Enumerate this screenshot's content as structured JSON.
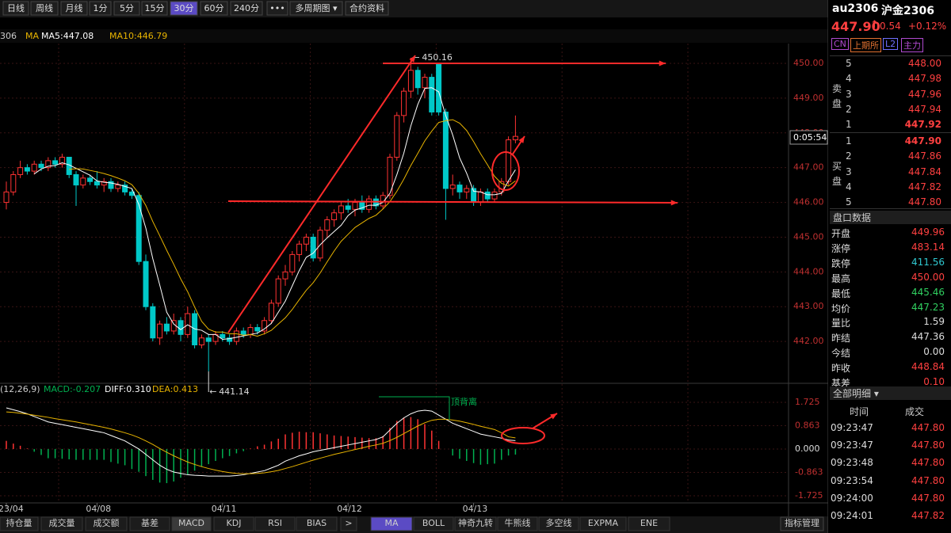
{
  "toolbar": {
    "buttons": [
      "日线",
      "周线",
      "月线",
      "1分",
      "5分",
      "15分",
      "30分",
      "60分",
      "240分",
      "•••",
      "多周期图 ▾",
      "合约资料"
    ]
  },
  "legend": {
    "code": "306",
    "ma": "MA",
    "ma5": "MA5:447.08",
    "ma10": "MA10:446.79"
  },
  "chart_data": {
    "type": "candlestick",
    "candles": [
      [
        446.0,
        446.6,
        445.8,
        446.3
      ],
      [
        446.3,
        446.9,
        446.2,
        446.8
      ],
      [
        446.8,
        447.2,
        446.7,
        447.0
      ],
      [
        447.0,
        447.1,
        446.8,
        446.9
      ],
      [
        446.9,
        447.2,
        446.8,
        447.1
      ],
      [
        447.1,
        447.2,
        446.9,
        447.0
      ],
      [
        447.0,
        447.3,
        446.9,
        447.2
      ],
      [
        447.2,
        447.3,
        447.0,
        447.1
      ],
      [
        447.1,
        447.4,
        447.0,
        447.3
      ],
      [
        447.3,
        447.3,
        446.7,
        446.8
      ],
      [
        446.8,
        446.9,
        445.9,
        446.5
      ],
      [
        446.5,
        446.8,
        446.4,
        446.7
      ],
      [
        446.7,
        446.8,
        446.5,
        446.6
      ],
      [
        446.6,
        446.9,
        446.4,
        446.5
      ],
      [
        446.5,
        446.7,
        446.3,
        446.6
      ],
      [
        446.6,
        446.7,
        446.3,
        446.4
      ],
      [
        446.4,
        446.6,
        446.3,
        446.5
      ],
      [
        446.5,
        446.6,
        446.2,
        446.3
      ],
      [
        446.3,
        446.4,
        446.1,
        446.2
      ],
      [
        446.2,
        446.3,
        444.2,
        444.3
      ],
      [
        444.3,
        444.5,
        442.9,
        443.0
      ],
      [
        443.0,
        443.1,
        442.0,
        442.1
      ],
      [
        442.1,
        442.6,
        441.9,
        442.5
      ],
      [
        442.5,
        442.7,
        442.2,
        442.3
      ],
      [
        442.3,
        442.8,
        442.2,
        442.6
      ],
      [
        442.6,
        442.7,
        442.0,
        442.2
      ],
      [
        442.2,
        443.0,
        442.1,
        442.8
      ],
      [
        442.8,
        442.9,
        441.8,
        441.9
      ],
      [
        441.9,
        442.2,
        441.8,
        442.1
      ],
      [
        442.1,
        442.2,
        441.14,
        442.0
      ],
      [
        442.0,
        442.3,
        441.9,
        442.2
      ],
      [
        442.2,
        442.3,
        442.0,
        442.1
      ],
      [
        442.1,
        442.2,
        441.9,
        442.0
      ],
      [
        442.0,
        442.4,
        441.9,
        442.3
      ],
      [
        442.3,
        442.4,
        442.1,
        442.2
      ],
      [
        442.2,
        442.5,
        442.1,
        442.4
      ],
      [
        442.4,
        442.5,
        442.2,
        442.3
      ],
      [
        442.3,
        442.7,
        442.2,
        442.6
      ],
      [
        442.6,
        443.2,
        442.5,
        443.1
      ],
      [
        443.1,
        443.9,
        443.0,
        443.8
      ],
      [
        443.8,
        444.2,
        443.6,
        444.0
      ],
      [
        444.0,
        444.6,
        443.9,
        444.5
      ],
      [
        444.5,
        444.9,
        444.3,
        444.8
      ],
      [
        444.8,
        445.1,
        444.6,
        445.0
      ],
      [
        445.0,
        445.1,
        444.3,
        444.4
      ],
      [
        444.4,
        445.3,
        444.3,
        445.2
      ],
      [
        445.2,
        445.6,
        445.0,
        445.5
      ],
      [
        445.5,
        445.8,
        445.3,
        445.7
      ],
      [
        445.7,
        446.0,
        445.5,
        445.9
      ],
      [
        445.9,
        446.1,
        445.7,
        445.8
      ],
      [
        445.8,
        446.1,
        445.6,
        446.0
      ],
      [
        446.0,
        446.2,
        445.7,
        445.8
      ],
      [
        445.8,
        446.2,
        445.7,
        446.1
      ],
      [
        446.1,
        446.2,
        445.8,
        445.9
      ],
      [
        445.9,
        446.3,
        445.8,
        446.2
      ],
      [
        446.2,
        447.4,
        446.1,
        447.3
      ],
      [
        447.3,
        448.6,
        447.2,
        448.5
      ],
      [
        448.5,
        449.3,
        448.3,
        449.2
      ],
      [
        449.2,
        450.16,
        449.0,
        449.8
      ],
      [
        449.8,
        449.9,
        449.1,
        449.3
      ],
      [
        449.3,
        449.7,
        449.0,
        449.6
      ],
      [
        449.6,
        449.7,
        448.5,
        448.6
      ],
      [
        450.0,
        450.0,
        448.5,
        448.6
      ],
      [
        448.6,
        448.7,
        445.5,
        446.4
      ],
      [
        446.4,
        446.8,
        446.2,
        446.5
      ],
      [
        446.5,
        446.6,
        446.1,
        446.3
      ],
      [
        446.3,
        446.5,
        446.1,
        446.4
      ],
      [
        446.4,
        446.5,
        445.9,
        446.0
      ],
      [
        446.0,
        446.4,
        445.9,
        446.3
      ],
      [
        446.3,
        446.4,
        446.0,
        446.1
      ],
      [
        446.1,
        446.4,
        446.0,
        446.3
      ],
      [
        446.3,
        446.7,
        446.2,
        446.6
      ],
      [
        446.6,
        447.9,
        446.5,
        447.8
      ],
      [
        447.8,
        448.5,
        447.7,
        447.9
      ]
    ],
    "categories": [
      "23/04",
      null,
      null,
      null,
      null,
      null,
      null,
      null,
      null,
      null,
      null,
      null,
      null,
      "04/08",
      null,
      null,
      null,
      null,
      null,
      null,
      null,
      null,
      null,
      null,
      null,
      null,
      null,
      null,
      null,
      null,
      null,
      "04/11",
      null,
      null,
      null,
      null,
      null,
      null,
      null,
      null,
      null,
      null,
      null,
      null,
      null,
      null,
      null,
      null,
      null,
      "04/12",
      null,
      null,
      null,
      null,
      null,
      null,
      null,
      null,
      null,
      null,
      null,
      null,
      null,
      null,
      null,
      null,
      null,
      "04/13",
      null,
      null,
      null,
      null,
      null,
      null
    ],
    "up_color": "#ff3232",
    "down_color": "#00c8c8",
    "ma": [
      {
        "period": 5,
        "color": "#ffffff"
      },
      {
        "period": 10,
        "color": "#e8b400"
      }
    ],
    "ylim": [
      441.0,
      450.57
    ],
    "yticks": [
      {
        "value": 442,
        "label": "442.00"
      },
      {
        "value": 443,
        "label": "443.00"
      },
      {
        "value": 444,
        "label": "444.00"
      },
      {
        "value": 445,
        "label": "445.00"
      },
      {
        "value": 446,
        "label": "446.00"
      },
      {
        "value": 447,
        "label": "447.00"
      },
      {
        "value": 448,
        "label": "448.00"
      },
      {
        "value": 449,
        "label": "449.00"
      },
      {
        "value": 450,
        "label": "450.00"
      }
    ],
    "countdown": "0:05:54"
  },
  "macd": {
    "params": "(12,26,9)",
    "macd_label": "MACD:-0.207",
    "diff_label": "DIFF:0.310",
    "dea_label": "DEA:0.413",
    "note": "顶背离",
    "diff": [
      1.52,
      1.45,
      1.38,
      1.3,
      1.2,
      1.1,
      1.0,
      0.95,
      0.9,
      0.85,
      0.8,
      0.75,
      0.7,
      0.65,
      0.6,
      0.5,
      0.4,
      0.3,
      0.15,
      0,
      -0.2,
      -0.4,
      -0.6,
      -0.75,
      -0.85,
      -0.9,
      -0.95,
      -0.97,
      -0.98,
      -1.0,
      -1.0,
      -1.0,
      -1.0,
      -0.98,
      -0.95,
      -0.9,
      -0.85,
      -0.8,
      -0.7,
      -0.6,
      -0.45,
      -0.35,
      -0.25,
      -0.18,
      -0.1,
      -0.05,
      0,
      0.05,
      0.1,
      0.15,
      0.2,
      0.25,
      0.3,
      0.35,
      0.45,
      0.7,
      0.95,
      1.15,
      1.3,
      1.4,
      1.43,
      1.4,
      1.25,
      1.1,
      0.95,
      0.85,
      0.75,
      0.65,
      0.55,
      0.5,
      0.45,
      0.4,
      0.33,
      0.31
    ],
    "dea": [
      1.37,
      1.35,
      1.32,
      1.29,
      1.25,
      1.21,
      1.17,
      1.12,
      1.08,
      1.04,
      1.0,
      0.95,
      0.9,
      0.85,
      0.8,
      0.74,
      0.67,
      0.6,
      0.52,
      0.42,
      0.3,
      0.17,
      0.02,
      -0.12,
      -0.25,
      -0.37,
      -0.48,
      -0.57,
      -0.65,
      -0.72,
      -0.78,
      -0.83,
      -0.87,
      -0.9,
      -0.91,
      -0.91,
      -0.9,
      -0.88,
      -0.84,
      -0.79,
      -0.72,
      -0.65,
      -0.57,
      -0.49,
      -0.41,
      -0.34,
      -0.27,
      -0.2,
      -0.14,
      -0.08,
      -0.02,
      0.04,
      0.1,
      0.15,
      0.21,
      0.31,
      0.43,
      0.57,
      0.71,
      0.85,
      0.97,
      1.06,
      1.1,
      1.1,
      1.07,
      1.03,
      0.97,
      0.91,
      0.84,
      0.78,
      0.72,
      0.6,
      0.45,
      0.413
    ],
    "diff_color": "#ffffff",
    "dea_color": "#e8b400",
    "ylim": [
      -1.99,
      1.87
    ],
    "yticks": [
      {
        "value": 1.725,
        "label": "1.725"
      },
      {
        "value": 0.863,
        "label": "0.863"
      },
      {
        "value": 0,
        "label": "0.000"
      },
      {
        "value": -0.863,
        "label": "-0.863"
      },
      {
        "value": -1.725,
        "label": "-1.725"
      }
    ]
  },
  "tabs": {
    "left": [
      "持仓量",
      "成交量",
      "成交额",
      "基差",
      "MACD",
      "KDJ",
      "RSI",
      "BIAS",
      ">"
    ],
    "right": [
      "MA",
      "BOLL",
      "神奇九转",
      "牛熊线",
      "多空线",
      "EXPMA",
      "ENE"
    ],
    "manage": "指标管理"
  },
  "quote": {
    "code": "au2306",
    "name": "沪金2306",
    "price": "447.90",
    "arrow": "↑",
    "change": "0.54",
    "pct": "+0.12%",
    "tags": [
      "CN",
      "上期所",
      "L2",
      "主力"
    ],
    "sell_label": [
      "卖",
      "盘"
    ],
    "buy_label": [
      "买",
      "盘"
    ],
    "asks": [
      {
        "level": "5",
        "price": "448.00"
      },
      {
        "level": "4",
        "price": "447.98"
      },
      {
        "level": "3",
        "price": "447.96"
      },
      {
        "level": "2",
        "price": "447.94"
      },
      {
        "level": "1",
        "price": "447.92"
      }
    ],
    "bids": [
      {
        "level": "1",
        "price": "447.90"
      },
      {
        "level": "2",
        "price": "447.86"
      },
      {
        "level": "3",
        "price": "447.84"
      },
      {
        "level": "4",
        "price": "447.82"
      },
      {
        "level": "5",
        "price": "447.80"
      }
    ]
  },
  "stats": {
    "title": "盘口数据",
    "rows": [
      [
        "开盘",
        "449.96"
      ],
      [
        "涨停",
        "483.14"
      ],
      [
        "跌停",
        "411.56"
      ],
      [
        "最高",
        "450.00"
      ],
      [
        "最低",
        "445.46"
      ],
      [
        "均价",
        "447.23"
      ],
      [
        "量比",
        "1.59"
      ],
      [
        "昨结",
        "447.36"
      ],
      [
        "今结",
        "0.00"
      ],
      [
        "昨收",
        "448.84"
      ],
      [
        "基差",
        "0.10"
      ]
    ]
  },
  "trades": {
    "title": "全部明细 ▾",
    "headers": [
      "时间",
      "成交"
    ],
    "rows": [
      [
        "09:23:47",
        "447.80"
      ],
      [
        "09:23:47",
        "447.80"
      ],
      [
        "09:23:48",
        "447.80"
      ],
      [
        "09:23:54",
        "447.80"
      ],
      [
        "09:24:00",
        "447.80"
      ],
      [
        "09:24:01",
        "447.82"
      ]
    ]
  }
}
